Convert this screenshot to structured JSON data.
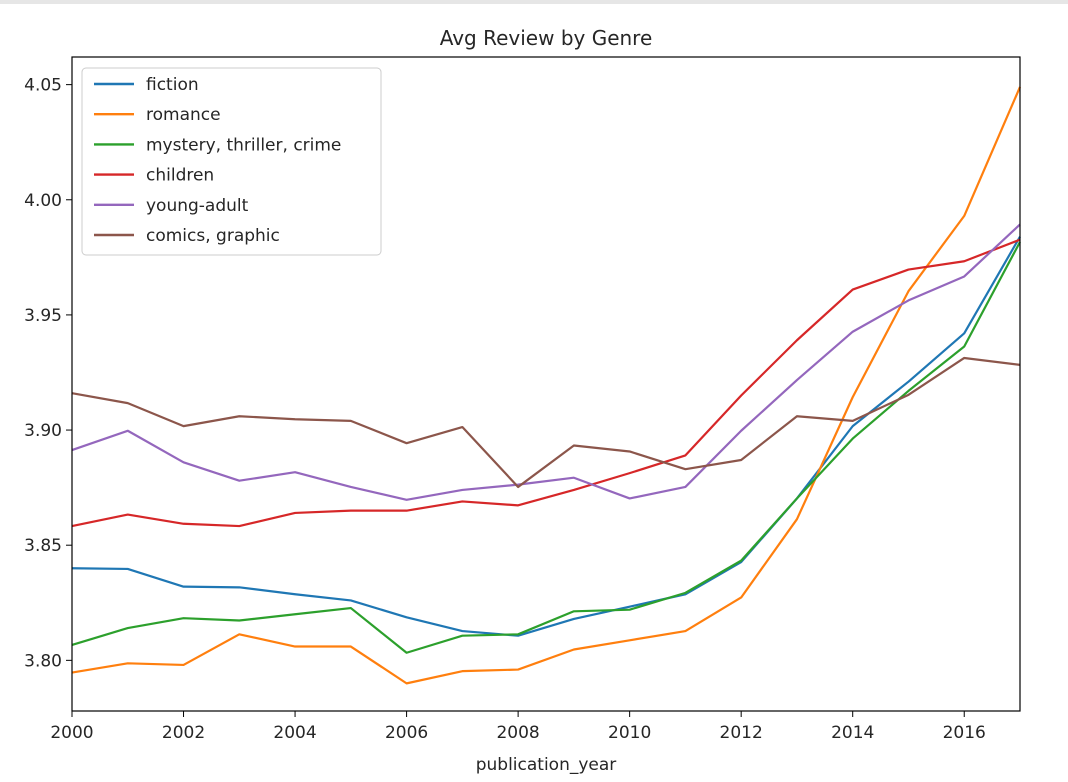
{
  "chart_data": {
    "type": "line",
    "title": "Avg Review by Genre",
    "xlabel": "publication_year",
    "ylabel": "",
    "xlim": [
      2000,
      2017
    ],
    "ylim": [
      3.778,
      4.062
    ],
    "xticks": [
      2000,
      2002,
      2004,
      2006,
      2008,
      2010,
      2012,
      2014,
      2016
    ],
    "yticks": [
      3.8,
      3.85,
      3.9,
      3.95,
      4.0,
      4.05
    ],
    "ytick_labels": [
      "3.80",
      "3.85",
      "3.90",
      "3.95",
      "4.00",
      "4.05"
    ],
    "grid": false,
    "legend_position": "top-left",
    "x": [
      2000,
      2001,
      2002,
      2003,
      2004,
      2005,
      2006,
      2007,
      2008,
      2009,
      2010,
      2011,
      2012,
      2013,
      2014,
      2015,
      2016,
      2017
    ],
    "series": [
      {
        "name": "fiction",
        "color": "#1f77b4",
        "values": [
          3.84,
          3.8397,
          3.832,
          3.8317,
          3.8287,
          3.826,
          3.8187,
          3.8127,
          3.8107,
          3.818,
          3.8233,
          3.8287,
          3.8427,
          3.8703,
          3.9017,
          3.921,
          3.942,
          3.984
        ]
      },
      {
        "name": "romance",
        "color": "#ff7f0e",
        "values": [
          3.7947,
          3.7987,
          3.798,
          3.8113,
          3.806,
          3.806,
          3.79,
          3.7953,
          3.796,
          3.8047,
          3.8087,
          3.8127,
          3.8273,
          3.8613,
          3.9143,
          3.9603,
          3.993,
          4.049
        ]
      },
      {
        "name": "mystery, thriller, crime",
        "color": "#2ca02c",
        "values": [
          3.8067,
          3.814,
          3.8183,
          3.8173,
          3.82,
          3.8227,
          3.8033,
          3.8107,
          3.8113,
          3.8213,
          3.822,
          3.8293,
          3.8433,
          3.8703,
          3.8963,
          3.917,
          3.9363,
          3.9817
        ]
      },
      {
        "name": "children",
        "color": "#d62728",
        "values": [
          3.8583,
          3.8633,
          3.8593,
          3.8583,
          3.864,
          3.865,
          3.865,
          3.869,
          3.8673,
          3.874,
          3.8813,
          3.889,
          3.915,
          3.939,
          3.961,
          3.9697,
          3.9733,
          3.9827
        ]
      },
      {
        "name": "young-adult",
        "color": "#9467bd",
        "values": [
          3.8913,
          3.8997,
          3.886,
          3.878,
          3.8817,
          3.8753,
          3.8697,
          3.874,
          3.8763,
          3.8793,
          3.8703,
          3.8753,
          3.8997,
          3.9217,
          3.9427,
          3.9563,
          3.9667,
          3.9893
        ]
      },
      {
        "name": "comics, graphic",
        "color": "#8c564b",
        "values": [
          3.916,
          3.9117,
          3.9017,
          3.906,
          3.9047,
          3.904,
          3.8943,
          3.9013,
          3.8753,
          3.8933,
          3.8907,
          3.883,
          3.887,
          3.906,
          3.904,
          3.9153,
          3.9313,
          3.9283
        ]
      }
    ]
  }
}
